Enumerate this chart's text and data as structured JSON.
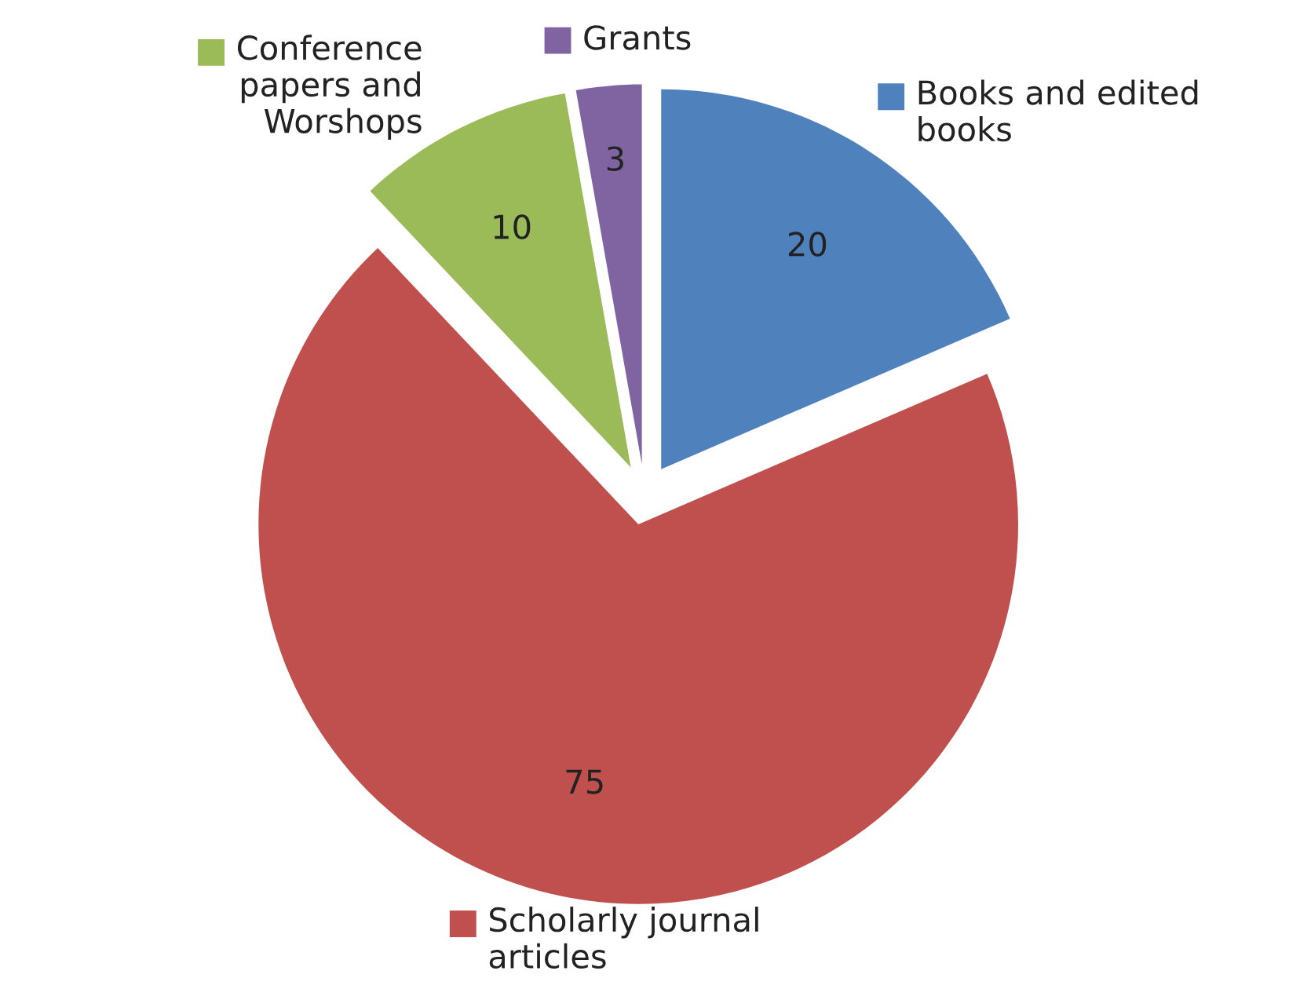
{
  "chart_data": {
    "type": "pie",
    "categories": [
      "Books and edited\nbooks",
      "Scholarly journal\narticles",
      "Conference\npapers and\nWorshops",
      "Grants"
    ],
    "values": [
      20,
      75,
      10,
      3
    ],
    "colors": [
      "#4f81bd",
      "#c0504d",
      "#9bbb59",
      "#8064a2"
    ],
    "data_labels": true,
    "legend": "bottom right"
  }
}
